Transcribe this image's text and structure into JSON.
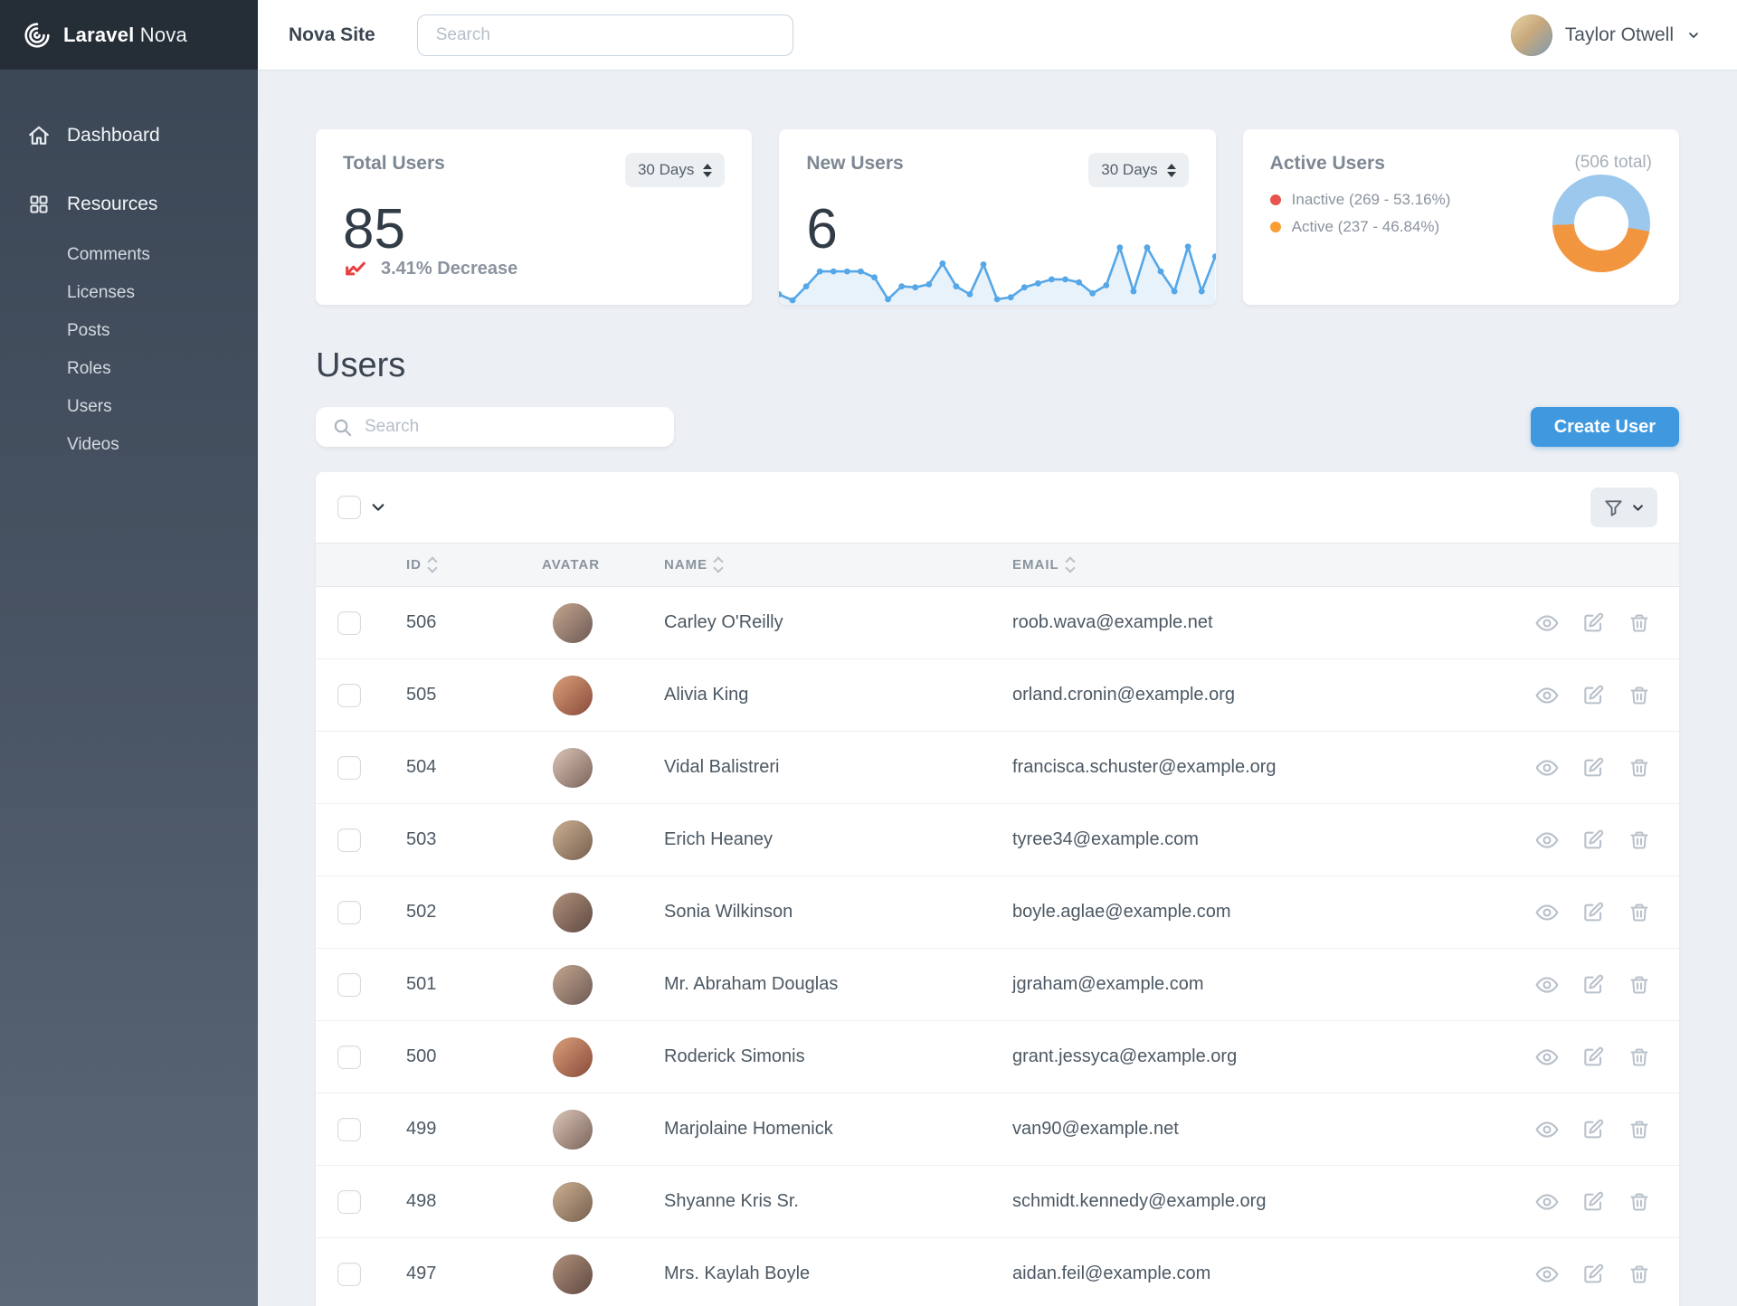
{
  "brand": {
    "bold": "Laravel",
    "light": "Nova"
  },
  "topbar": {
    "site_link": "Nova Site",
    "search_placeholder": "Search",
    "user_name": "Taylor Otwell"
  },
  "sidebar": {
    "dashboard_label": "Dashboard",
    "resources_label": "Resources",
    "resources": [
      "Comments",
      "Licenses",
      "Posts",
      "Roles",
      "Users",
      "Videos"
    ]
  },
  "metrics": {
    "total_users": {
      "title": "Total Users",
      "range": "30 Days",
      "value": "85",
      "trend_label": "3.41% Decrease",
      "trend_color": "#e8403f"
    },
    "new_users": {
      "title": "New Users",
      "range": "30 Days",
      "value": "6",
      "spark_color": "#55a7e8",
      "spark_fill": "#e8f2fb",
      "spark": [
        0.6,
        0,
        1.4,
        2.9,
        2.9,
        2.9,
        2.9,
        2.3,
        0.1,
        1.4,
        1.3,
        1.6,
        3.7,
        1.4,
        0.6,
        3.6,
        0.1,
        0.3,
        1.3,
        1.7,
        2.1,
        2.1,
        1.8,
        0.7,
        1.5,
        5.3,
        0.9,
        5.3,
        2.9,
        0.9,
        5.4,
        0.9,
        4.4
      ],
      "spark_max": 6
    },
    "active_users": {
      "title": "Active Users",
      "total_label": "(506 total)",
      "legend": [
        {
          "label": "Inactive (269 - 53.16%)",
          "color": "#e8534e"
        },
        {
          "label": "Active (237 - 46.84%)",
          "color": "#f99d32"
        }
      ],
      "donut": {
        "slices": [
          {
            "name": "Inactive",
            "pct": 53.16,
            "color": "#9cc8ee"
          },
          {
            "name": "Active",
            "pct": 46.84,
            "color": "#f2953f"
          }
        ],
        "start_deg": 268
      }
    }
  },
  "resource": {
    "heading": "Users",
    "search_placeholder": "Search",
    "create_button": "Create User",
    "table": {
      "columns": [
        "ID",
        "AVATAR",
        "NAME",
        "EMAIL"
      ],
      "rows": [
        {
          "id": "506",
          "name": "Carley O'Reilly",
          "email": "roob.wava@example.net"
        },
        {
          "id": "505",
          "name": "Alivia King",
          "email": "orland.cronin@example.org"
        },
        {
          "id": "504",
          "name": "Vidal Balistreri",
          "email": "francisca.schuster@example.org"
        },
        {
          "id": "503",
          "name": "Erich Heaney",
          "email": "tyree34@example.com"
        },
        {
          "id": "502",
          "name": "Sonia Wilkinson",
          "email": "boyle.aglae@example.com"
        },
        {
          "id": "501",
          "name": "Mr. Abraham Douglas",
          "email": "jgraham@example.com"
        },
        {
          "id": "500",
          "name": "Roderick Simonis",
          "email": "grant.jessyca@example.org"
        },
        {
          "id": "499",
          "name": "Marjolaine Homenick",
          "email": "van90@example.net"
        },
        {
          "id": "498",
          "name": "Shyanne Kris Sr.",
          "email": "schmidt.kennedy@example.org"
        },
        {
          "id": "497",
          "name": "Mrs. Kaylah Boyle",
          "email": "aidan.feil@example.com"
        }
      ]
    }
  },
  "chart_data": [
    {
      "type": "line",
      "title": "New Users (30 Days)",
      "x": [
        1,
        2,
        3,
        4,
        5,
        6,
        7,
        8,
        9,
        10,
        11,
        12,
        13,
        14,
        15,
        16,
        17,
        18,
        19,
        20,
        21,
        22,
        23,
        24,
        25,
        26,
        27,
        28,
        29,
        30,
        31,
        32,
        33
      ],
      "values": [
        0.6,
        0,
        1.4,
        2.9,
        2.9,
        2.9,
        2.9,
        2.3,
        0.1,
        1.4,
        1.3,
        1.6,
        3.7,
        1.4,
        0.6,
        3.6,
        0.1,
        0.3,
        1.3,
        1.7,
        2.1,
        2.1,
        1.8,
        0.7,
        1.5,
        5.3,
        0.9,
        5.3,
        2.9,
        0.9,
        5.4,
        0.9,
        4.4
      ],
      "ylim": [
        0,
        6
      ],
      "grid": false,
      "legend_position": "none"
    },
    {
      "type": "pie",
      "title": "Active Users (506 total)",
      "categories": [
        "Inactive",
        "Active"
      ],
      "values": [
        269,
        237
      ],
      "percentages": [
        53.16,
        46.84
      ],
      "legend_position": "left"
    }
  ]
}
